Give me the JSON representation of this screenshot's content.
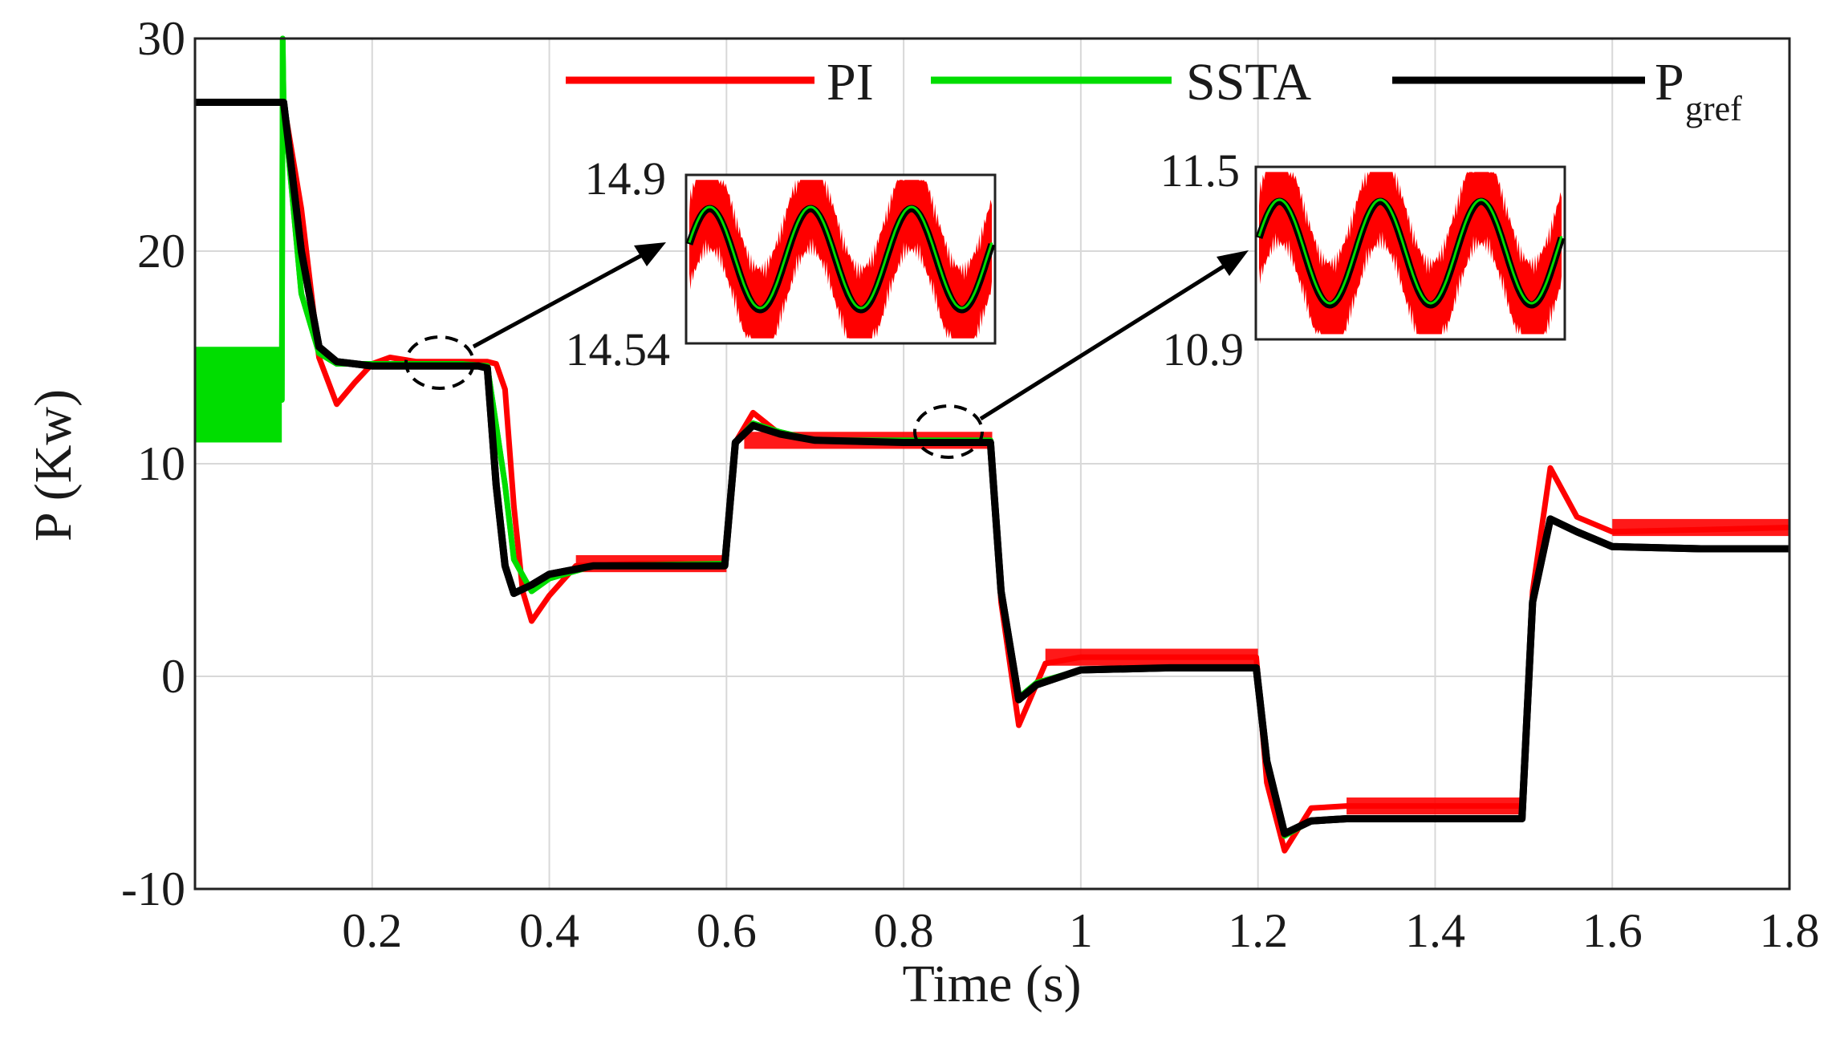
{
  "chart_data": {
    "type": "line",
    "title": "",
    "xlabel": "Time (s)",
    "ylabel": "P (Kw)",
    "xlim": [
      0,
      1.8
    ],
    "ylim": [
      -10,
      30
    ],
    "grid": true,
    "legend_position": "top",
    "x_ticks": [
      "0.2",
      "0.4",
      "0.6",
      "0.8",
      "1",
      "1.2",
      "1.4",
      "1.6",
      "1.8"
    ],
    "y_ticks": [
      "-10",
      "0",
      "10",
      "20",
      "30"
    ],
    "colors": {
      "pi": "#ff0000",
      "ssta": "#00dd00",
      "pgref": "#000000"
    },
    "series": [
      {
        "name": "PI",
        "x": [
          0,
          0.098,
          0.1,
          0.12,
          0.14,
          0.16,
          0.18,
          0.2,
          0.22,
          0.25,
          0.3,
          0.33,
          0.34,
          0.35,
          0.36,
          0.37,
          0.38,
          0.4,
          0.43,
          0.5,
          0.598,
          0.61,
          0.63,
          0.66,
          0.7,
          0.8,
          0.898,
          0.91,
          0.93,
          0.96,
          1.0,
          1.1,
          1.198,
          1.21,
          1.23,
          1.26,
          1.3,
          1.4,
          1.498,
          1.51,
          1.53,
          1.56,
          1.6,
          1.7,
          1.8
        ],
        "y": [
          27,
          27,
          27,
          22,
          15,
          12.8,
          13.8,
          14.7,
          15.0,
          14.8,
          14.8,
          14.8,
          14.7,
          13.5,
          8,
          4.0,
          2.6,
          3.8,
          5.2,
          5.3,
          5.3,
          11,
          12.4,
          11.4,
          11.1,
          11.1,
          11.1,
          3.5,
          -2.3,
          0.6,
          0.9,
          0.9,
          0.9,
          -5,
          -8.2,
          -6.2,
          -6.1,
          -6.1,
          -6.1,
          4,
          9.8,
          7.5,
          6.8,
          6.9,
          7.0
        ]
      },
      {
        "name": "SSTA",
        "x": [
          0,
          0.098,
          0.099,
          0.1,
          0.12,
          0.14,
          0.16,
          0.2,
          0.3,
          0.33,
          0.35,
          0.36,
          0.38,
          0.4,
          0.45,
          0.598,
          0.61,
          0.63,
          0.66,
          0.7,
          0.8,
          0.898,
          0.91,
          0.93,
          0.95,
          1.0,
          1.1,
          1.198,
          1.21,
          1.23,
          1.26,
          1.3,
          1.4,
          1.498,
          1.51,
          1.53,
          1.56,
          1.6,
          1.7,
          1.8
        ],
        "y": [
          13,
          13,
          30,
          27,
          18,
          15.2,
          14.7,
          14.7,
          14.7,
          14.6,
          9,
          5.5,
          4.0,
          4.6,
          5.2,
          5.3,
          11,
          11.9,
          11.5,
          11.1,
          11.1,
          11.1,
          4,
          -1.0,
          -0.3,
          0.3,
          0.4,
          0.4,
          -4,
          -7.5,
          -6.8,
          -6.7,
          -6.7,
          -6.7,
          3.5,
          7.4,
          6.8,
          6.1,
          6.0,
          6.0
        ]
      },
      {
        "name": "Pgref",
        "x": [
          0,
          0.098,
          0.1,
          0.12,
          0.14,
          0.16,
          0.2,
          0.3,
          0.32,
          0.33,
          0.34,
          0.35,
          0.36,
          0.38,
          0.4,
          0.45,
          0.598,
          0.61,
          0.63,
          0.66,
          0.7,
          0.8,
          0.898,
          0.91,
          0.93,
          0.95,
          1.0,
          1.1,
          1.198,
          1.21,
          1.23,
          1.26,
          1.3,
          1.4,
          1.498,
          1.51,
          1.53,
          1.56,
          1.6,
          1.7,
          1.8
        ],
        "y": [
          27,
          27,
          27,
          20,
          15.5,
          14.8,
          14.6,
          14.6,
          14.6,
          14.5,
          9,
          5.2,
          3.9,
          4.3,
          4.8,
          5.2,
          5.2,
          11,
          11.8,
          11.4,
          11.1,
          11.0,
          11.0,
          4,
          -1.1,
          -0.4,
          0.3,
          0.4,
          0.4,
          -4,
          -7.4,
          -6.8,
          -6.7,
          -6.7,
          -6.7,
          3.5,
          7.4,
          6.8,
          6.1,
          6.0,
          6.0
        ]
      }
    ],
    "insets": [
      {
        "ymax_label": "14.9",
        "ymin_label": "14.54",
        "ylim": [
          14.54,
          14.9
        ],
        "periods": 3,
        "series": [
          "PI",
          "SSTA",
          "Pgref"
        ]
      },
      {
        "ymax_label": "11.5",
        "ymin_label": "10.9",
        "ylim": [
          10.9,
          11.5
        ],
        "periods": 3,
        "series": [
          "PI",
          "SSTA",
          "Pgref"
        ]
      }
    ],
    "legend": [
      "PI",
      "SSTA",
      "P",
      "gref"
    ]
  }
}
